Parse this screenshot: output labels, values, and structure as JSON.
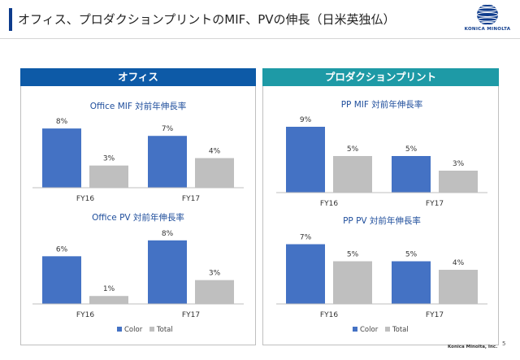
{
  "header": {
    "title": "オフィス、プロダクションプリントのMIF、PVの伸長（日米英独仏）",
    "logo_text": "KONICA MINOLTA"
  },
  "panels": {
    "left_title": "オフィス",
    "right_title": "プロダクションプリント"
  },
  "legend": {
    "color_label": "Color",
    "total_label": "Total"
  },
  "colors": {
    "color_series": "#4472c4",
    "total_series": "#bfbfbf",
    "office_header": "#0d5aa7",
    "production_header": "#1e9aa6",
    "title_text": "#1f4e9c"
  },
  "footer": {
    "company": "Konica Minolta, Inc.",
    "page": "5"
  },
  "chart_data": [
    {
      "id": "office-mif",
      "type": "bar",
      "title": "Office MIF 対前年伸長率",
      "categories": [
        "FY16",
        "FY17"
      ],
      "series": [
        {
          "name": "Color",
          "values": [
            8,
            7
          ],
          "labels": [
            "8%",
            "7%"
          ]
        },
        {
          "name": "Total",
          "values": [
            3,
            4
          ],
          "labels": [
            "3%",
            "4%"
          ]
        }
      ],
      "ylim": [
        0,
        9
      ]
    },
    {
      "id": "office-pv",
      "type": "bar",
      "title": "Office PV 対前年伸長率",
      "categories": [
        "FY16",
        "FY17"
      ],
      "series": [
        {
          "name": "Color",
          "values": [
            6,
            8
          ],
          "labels": [
            "6%",
            "8%"
          ]
        },
        {
          "name": "Total",
          "values": [
            1,
            3
          ],
          "labels": [
            "1%",
            "3%"
          ]
        }
      ],
      "ylim": [
        0,
        9
      ]
    },
    {
      "id": "pp-mif",
      "type": "bar",
      "title": "PP MIF 対前年伸長率",
      "categories": [
        "FY16",
        "FY17"
      ],
      "series": [
        {
          "name": "Color",
          "values": [
            9,
            5
          ],
          "labels": [
            "9%",
            "5%"
          ]
        },
        {
          "name": "Total",
          "values": [
            5,
            3
          ],
          "labels": [
            "5%",
            "3%"
          ]
        }
      ],
      "ylim": [
        0,
        10
      ]
    },
    {
      "id": "pp-pv",
      "type": "bar",
      "title": "PP PV 対前年伸長率",
      "categories": [
        "FY16",
        "FY17"
      ],
      "series": [
        {
          "name": "Color",
          "values": [
            7,
            5
          ],
          "labels": [
            "7%",
            "5%"
          ]
        },
        {
          "name": "Total",
          "values": [
            5,
            4
          ],
          "labels": [
            "5%",
            "4%"
          ]
        }
      ],
      "ylim": [
        0,
        8
      ]
    }
  ]
}
